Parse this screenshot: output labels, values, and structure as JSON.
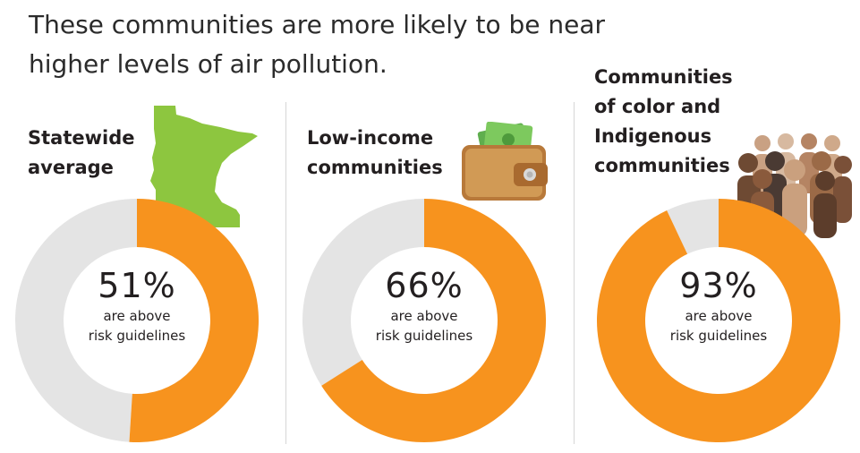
{
  "headline": {
    "line1": "These communities are more likely to be near",
    "line2": "higher levels of air pollution."
  },
  "colors": {
    "above": "#f7931e",
    "below": "#e4e4e4",
    "divider": "#d6d6d6"
  },
  "chart_data": {
    "type": "pie",
    "variant": "donut",
    "charts": [
      {
        "label_lines": [
          "Statewide",
          "average"
        ],
        "icon": "minnesota-map-icon",
        "value": 51,
        "value_text": "51%",
        "caption_line1": "are above",
        "caption_line2": "risk guidelines"
      },
      {
        "label_lines": [
          "Low-income",
          "communities"
        ],
        "icon": "wallet-icon",
        "value": 66,
        "value_text": "66%",
        "caption_line1": "are above",
        "caption_line2": "risk guidelines"
      },
      {
        "label_lines": [
          "Communities",
          "of color and",
          "Indigenous",
          "communities"
        ],
        "icon": "people-group-icon",
        "value": 93,
        "value_text": "93%",
        "caption_line1": "are above",
        "caption_line2": "risk guidelines"
      }
    ]
  }
}
